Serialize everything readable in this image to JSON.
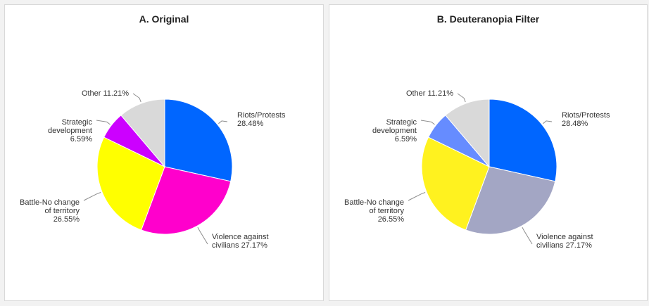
{
  "chart_data": [
    {
      "type": "pie",
      "title": "A. Original",
      "slices": [
        {
          "name": "Riots/Protests",
          "value": 28.48,
          "label": "28.48%",
          "color": "#0066ff"
        },
        {
          "name": "Violence against civilians",
          "value": 27.17,
          "label": "27.17%",
          "color": "#ff00cc"
        },
        {
          "name": "Battle-No change of territory",
          "value": 26.55,
          "label": "26.55%",
          "color": "#ffff00"
        },
        {
          "name": "Strategic development",
          "value": 6.59,
          "label": "6.59%",
          "color": "#cc00ff"
        },
        {
          "name": "Other",
          "value": 11.21,
          "label": "11.21%",
          "color": "#d9d9d9"
        }
      ]
    },
    {
      "type": "pie",
      "title": "B. Deuteranopia Filter",
      "slices": [
        {
          "name": "Riots/Protests",
          "value": 28.48,
          "label": "28.48%",
          "color": "#0066ff"
        },
        {
          "name": "Violence against civilians",
          "value": 27.17,
          "label": "27.17%",
          "color": "#a3a6c4"
        },
        {
          "name": "Battle-No change of territory",
          "value": 26.55,
          "label": "26.55%",
          "color": "#fff21f"
        },
        {
          "name": "Strategic development",
          "value": 6.59,
          "label": "6.59%",
          "color": "#668cff"
        },
        {
          "name": "Other",
          "value": 11.21,
          "label": "11.21%",
          "color": "#d9d9d9"
        }
      ]
    }
  ]
}
